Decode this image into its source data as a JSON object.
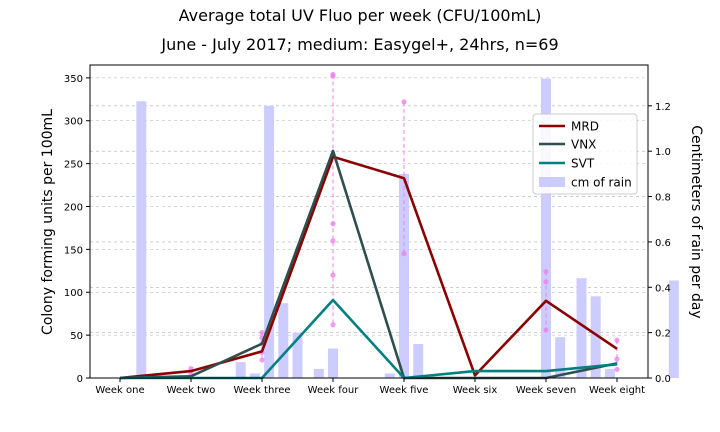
{
  "chart_data": {
    "type": "line",
    "title": "Average total UV Fluo per week (CFU/100mL)",
    "subtitle": "June - July 2017; medium: Easygel+, 24hrs, n=69",
    "xlabel": "",
    "ylabel": "Colony forming units per 100mL",
    "y2label": "Centimeters of rain per day",
    "categories": [
      "Week one",
      "Week two",
      "Week three",
      "Week four",
      "Week five",
      "Week six",
      "Week seven",
      "Week eight"
    ],
    "ylim": [
      0,
      365
    ],
    "yticks": [
      0,
      50,
      100,
      150,
      200,
      250,
      300,
      350
    ],
    "y2lim": [
      0,
      1.38
    ],
    "y2ticks": [
      "0.0",
      "0.2",
      "0.4",
      "0.6",
      "0.8",
      "1.0",
      "1.2"
    ],
    "grid": true,
    "legend_position": "right",
    "series": [
      {
        "name": "MRD",
        "color": "#8b0000",
        "values": [
          0,
          8,
          31,
          258,
          233,
          3,
          90,
          34
        ]
      },
      {
        "name": "VNX",
        "color": "#2f4f4f",
        "values": [
          0,
          2,
          40,
          265,
          0,
          0,
          0,
          17
        ]
      },
      {
        "name": "SVT",
        "color": "#008080",
        "values": [
          0,
          0,
          0,
          91,
          0,
          8,
          8,
          16
        ]
      }
    ],
    "rain": {
      "name": "cm of rain",
      "color": "#ccccff",
      "bars": [
        {
          "x": 0.3,
          "value": 1.22
        },
        {
          "x": 1.7,
          "value": 0.07
        },
        {
          "x": 1.9,
          "value": 0.02
        },
        {
          "x": 2.1,
          "value": 1.2
        },
        {
          "x": 2.3,
          "value": 0.33
        },
        {
          "x": 2.5,
          "value": 0.2
        },
        {
          "x": 2.8,
          "value": 0.04
        },
        {
          "x": 3.0,
          "value": 0.13
        },
        {
          "x": 3.8,
          "value": 0.02
        },
        {
          "x": 4.0,
          "value": 0.9
        },
        {
          "x": 4.2,
          "value": 0.15
        },
        {
          "x": 6.0,
          "value": 1.32
        },
        {
          "x": 6.2,
          "value": 0.18
        },
        {
          "x": 6.5,
          "value": 0.44
        },
        {
          "x": 6.7,
          "value": 0.36
        },
        {
          "x": 6.9,
          "value": 0.04
        },
        {
          "x": 7.8,
          "value": 0.43
        }
      ]
    },
    "samples": [
      {
        "x": 1,
        "values": [
          11,
          5
        ]
      },
      {
        "x": 2,
        "values": [
          53,
          47,
          40,
          30,
          21
        ]
      },
      {
        "x": 3,
        "values": [
          354,
          352,
          180,
          160,
          120,
          62
        ]
      },
      {
        "x": 4,
        "values": [
          322,
          145
        ]
      },
      {
        "x": 6,
        "values": [
          124,
          112,
          56
        ]
      },
      {
        "x": 7,
        "values": [
          44,
          22,
          10
        ]
      }
    ],
    "colors": {
      "sample_marker": "#ee82ee",
      "sample_line": "#ee82ee",
      "grid": "#b0b0b0"
    }
  }
}
